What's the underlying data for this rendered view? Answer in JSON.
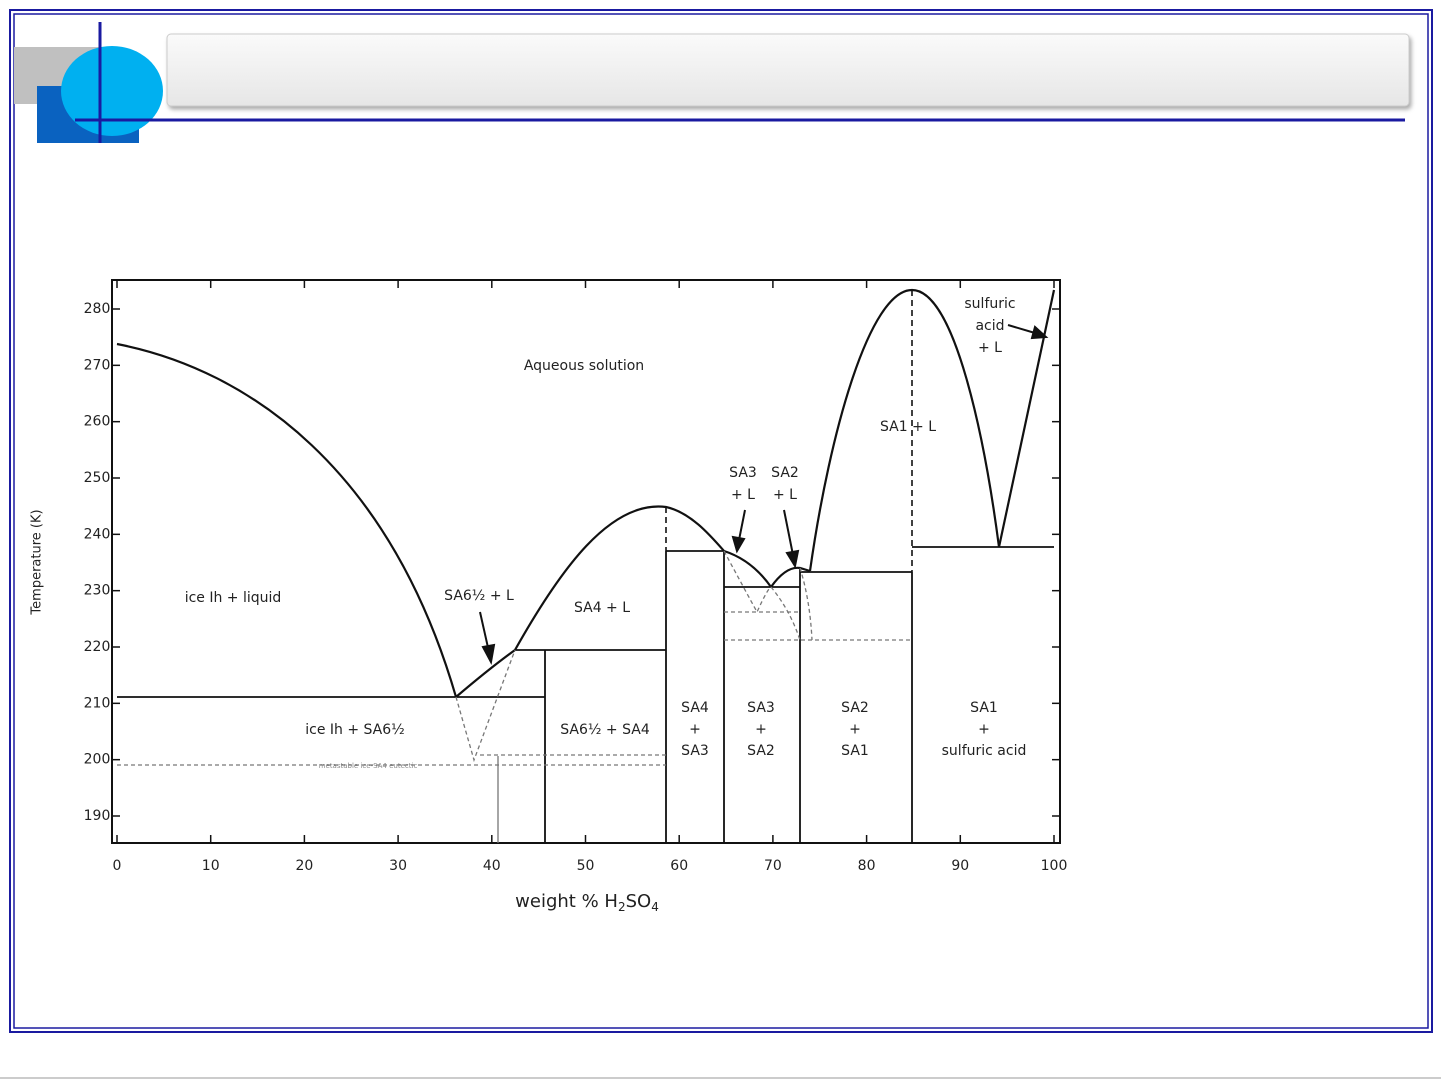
{
  "diagram": {
    "y_label": "Temperature (K)",
    "x_label": [
      "weight % H",
      "2",
      "SO",
      "4"
    ],
    "xticks": [
      0,
      10,
      20,
      30,
      40,
      50,
      60,
      70,
      80,
      90,
      100
    ],
    "yticks": [
      190,
      200,
      210,
      220,
      230,
      240,
      250,
      260,
      270,
      280
    ],
    "regions": [
      [
        "Aqueous solution"
      ],
      [
        "ice Ih + liquid"
      ],
      [
        "SA6½ + L"
      ],
      [
        "SA4 + L"
      ],
      [
        "SA3",
        "+ L"
      ],
      [
        "SA2",
        "+ L"
      ],
      [
        "SA1 + L"
      ],
      [
        "sulfuric",
        "acid",
        "+ L"
      ],
      [
        "ice Ih + SA6½"
      ],
      [
        "SA6½ + SA4"
      ],
      [
        "SA4",
        "+",
        "SA3"
      ],
      [
        "SA3",
        "+",
        "SA2"
      ],
      [
        "SA2",
        "+",
        "SA1"
      ],
      [
        "SA1",
        "+",
        "sulfuric acid"
      ],
      [
        "metastable ice-SA4 eutectic"
      ]
    ]
  }
}
